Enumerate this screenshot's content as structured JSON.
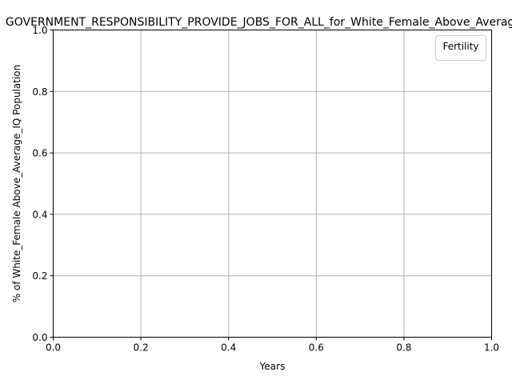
{
  "chart_data": {
    "type": "line",
    "title": "GOVERNMENT_RESPONSIBILITY_PROVIDE_JOBS_FOR_ALL_for_White_Female_Above_Average_IQ",
    "xlabel": "Years",
    "ylabel": "% of White_Female Above_Average_IQ Population",
    "xlim": [
      0.0,
      1.0
    ],
    "ylim": [
      0.0,
      1.0
    ],
    "x_ticks": [
      "0.0",
      "0.2",
      "0.4",
      "0.6",
      "0.8",
      "1.0"
    ],
    "y_ticks": [
      "0.0",
      "0.2",
      "0.4",
      "0.6",
      "0.8",
      "1.0"
    ],
    "grid": true,
    "legend": {
      "title": "Fertility",
      "placement": "top-right",
      "entries": []
    },
    "series": []
  },
  "colors": {
    "grid": "#b0b0b0",
    "axes": "#000000",
    "legend_border": "#cccccc"
  }
}
